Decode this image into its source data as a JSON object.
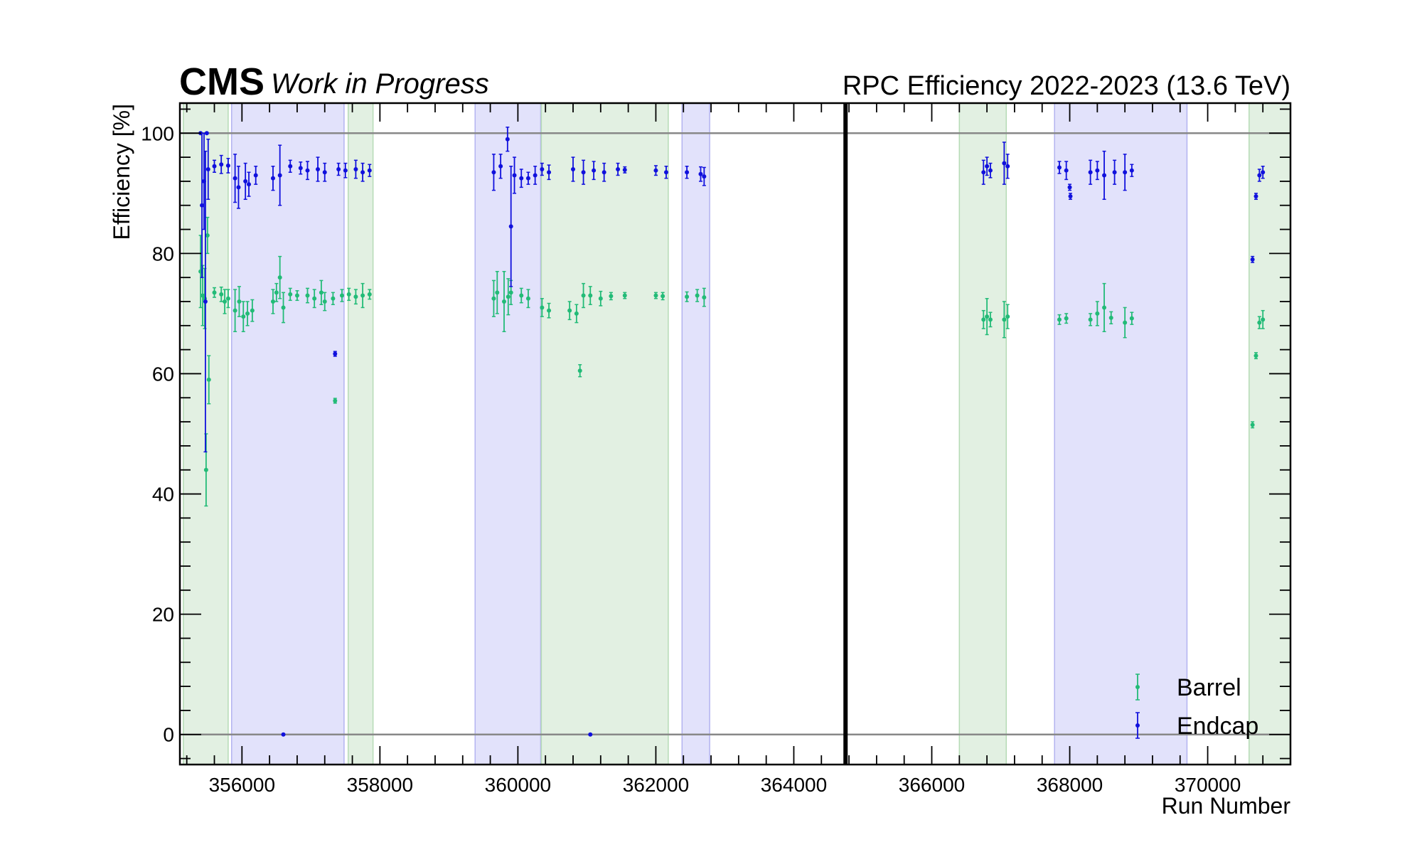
{
  "header": {
    "experiment": "CMS",
    "status": "Work in Progress",
    "title": "RPC Efficiency 2022-2023 (13.6 TeV)"
  },
  "chart_data": {
    "type": "scatter",
    "xlabel": "Run Number",
    "ylabel": "Efficiency [%]",
    "xlim": [
      355100,
      371200
    ],
    "ylim": [
      -5,
      105
    ],
    "x_ticks": [
      356000,
      358000,
      360000,
      362000,
      364000,
      366000,
      368000,
      370000
    ],
    "y_ticks": [
      0,
      20,
      40,
      60,
      80,
      100
    ],
    "reference_lines_y": [
      0,
      100
    ],
    "separator_x": 364750,
    "legend_position": "bottom-right",
    "colors": {
      "barrel": "#22bb77",
      "endcap": "#1010dd",
      "green_band": "#cfe6cf",
      "blue_band": "#cfcff8"
    },
    "bands": [
      {
        "x0": 355150,
        "x1": 355800,
        "color": "green"
      },
      {
        "x0": 355850,
        "x1": 357480,
        "color": "blue"
      },
      {
        "x0": 357540,
        "x1": 357900,
        "color": "green"
      },
      {
        "x0": 359380,
        "x1": 360330,
        "color": "blue"
      },
      {
        "x0": 360340,
        "x1": 362180,
        "color": "green"
      },
      {
        "x0": 362380,
        "x1": 362780,
        "color": "blue"
      },
      {
        "x0": 366400,
        "x1": 367080,
        "color": "green"
      },
      {
        "x0": 367780,
        "x1": 369700,
        "color": "blue"
      },
      {
        "x0": 370600,
        "x1": 371200,
        "color": "green"
      }
    ],
    "series": [
      {
        "name": "Barrel",
        "color": "#22bb77",
        "points": [
          [
            355400,
            77.0,
            6.0
          ],
          [
            355430,
            73.0,
            5.0
          ],
          [
            355460,
            72.5,
            5.0
          ],
          [
            355480,
            44.0,
            6.0
          ],
          [
            355500,
            83.0,
            3.0
          ],
          [
            355520,
            59.0,
            4.0
          ],
          [
            355600,
            73.5,
            0.8
          ],
          [
            355700,
            73.2,
            1.2
          ],
          [
            355750,
            72.0,
            2.0
          ],
          [
            355800,
            72.5,
            1.5
          ],
          [
            355900,
            70.5,
            3.5
          ],
          [
            355960,
            72.0,
            2.5
          ],
          [
            356020,
            69.5,
            2.5
          ],
          [
            356080,
            70.0,
            2.0
          ],
          [
            356150,
            70.5,
            1.8
          ],
          [
            356450,
            72.0,
            2.0
          ],
          [
            356500,
            73.5,
            1.5
          ],
          [
            356550,
            76.0,
            3.5
          ],
          [
            356600,
            71.0,
            2.5
          ],
          [
            356700,
            73.2,
            1.0
          ],
          [
            356800,
            73.0,
            0.8
          ],
          [
            356950,
            73.0,
            1.2
          ],
          [
            357050,
            72.5,
            1.5
          ],
          [
            357150,
            73.5,
            2.0
          ],
          [
            357200,
            72.0,
            1.5
          ],
          [
            357320,
            72.5,
            1.0
          ],
          [
            357350,
            55.5,
            0.4
          ],
          [
            357450,
            73.0,
            1.0
          ],
          [
            357550,
            73.2,
            1.0
          ],
          [
            357650,
            72.8,
            1.2
          ],
          [
            357750,
            73.0,
            2.0
          ],
          [
            357850,
            73.2,
            0.8
          ],
          [
            359650,
            72.5,
            3.0
          ],
          [
            359700,
            73.5,
            3.5
          ],
          [
            359800,
            72.0,
            5.0
          ],
          [
            359860,
            72.8,
            3.0
          ],
          [
            359900,
            73.5,
            2.0
          ],
          [
            360050,
            73.0,
            1.2
          ],
          [
            360150,
            72.5,
            1.5
          ],
          [
            360350,
            71.0,
            1.5
          ],
          [
            360450,
            70.5,
            1.2
          ],
          [
            360750,
            70.5,
            1.5
          ],
          [
            360850,
            70.0,
            1.5
          ],
          [
            360900,
            60.5,
            1.0
          ],
          [
            360950,
            73.0,
            2.0
          ],
          [
            361050,
            73.0,
            1.5
          ],
          [
            361200,
            72.5,
            1.2
          ],
          [
            361350,
            72.9,
            0.6
          ],
          [
            361550,
            73.0,
            0.5
          ],
          [
            362000,
            73.0,
            0.5
          ],
          [
            362100,
            72.9,
            0.6
          ],
          [
            362450,
            72.8,
            0.8
          ],
          [
            362600,
            73.0,
            1.0
          ],
          [
            362700,
            72.7,
            1.5
          ],
          [
            366750,
            69.0,
            1.5
          ],
          [
            366800,
            69.5,
            3.0
          ],
          [
            366850,
            69.0,
            1.2
          ],
          [
            367050,
            69.0,
            3.0
          ],
          [
            367100,
            69.5,
            2.0
          ],
          [
            367850,
            69.0,
            0.8
          ],
          [
            367950,
            69.2,
            0.8
          ],
          [
            368300,
            69.0,
            1.0
          ],
          [
            368400,
            70.0,
            2.0
          ],
          [
            368500,
            71.0,
            4.0
          ],
          [
            368600,
            69.3,
            1.0
          ],
          [
            368800,
            68.5,
            2.5
          ],
          [
            368900,
            69.2,
            1.0
          ],
          [
            370650,
            51.5,
            0.5
          ],
          [
            370700,
            63.0,
            0.5
          ],
          [
            370750,
            68.5,
            1.0
          ],
          [
            370800,
            69.0,
            1.5
          ]
        ]
      },
      {
        "name": "Endcap",
        "color": "#1010dd",
        "points": [
          [
            355400,
            100.0,
            0.0
          ],
          [
            355420,
            88.0,
            12.0
          ],
          [
            355450,
            92.0,
            8.0
          ],
          [
            355470,
            72.0,
            25.0
          ],
          [
            355490,
            100.0,
            0.0
          ],
          [
            355510,
            94.0,
            5.0
          ],
          [
            355600,
            94.5,
            1.0
          ],
          [
            355700,
            94.8,
            1.5
          ],
          [
            355800,
            94.6,
            1.2
          ],
          [
            355900,
            92.5,
            4.0
          ],
          [
            355950,
            91.0,
            3.5
          ],
          [
            356050,
            92.0,
            3.0
          ],
          [
            356100,
            91.5,
            2.0
          ],
          [
            356200,
            93.0,
            1.5
          ],
          [
            356450,
            92.5,
            2.0
          ],
          [
            356550,
            93.0,
            5.0
          ],
          [
            356600,
            0.0,
            0.0
          ],
          [
            356700,
            94.5,
            1.0
          ],
          [
            356850,
            94.2,
            1.0
          ],
          [
            356950,
            93.8,
            1.5
          ],
          [
            357100,
            94.0,
            2.0
          ],
          [
            357200,
            93.5,
            1.5
          ],
          [
            357350,
            63.3,
            0.4
          ],
          [
            357400,
            94.0,
            1.0
          ],
          [
            357500,
            93.8,
            1.2
          ],
          [
            357650,
            94.0,
            1.5
          ],
          [
            357750,
            93.5,
            1.5
          ],
          [
            357850,
            93.8,
            1.0
          ],
          [
            359650,
            93.5,
            3.0
          ],
          [
            359750,
            94.5,
            2.0
          ],
          [
            359850,
            99.0,
            2.0
          ],
          [
            359900,
            84.5,
            10.0
          ],
          [
            359950,
            93.0,
            3.0
          ],
          [
            360050,
            92.5,
            1.5
          ],
          [
            360150,
            92.5,
            1.0
          ],
          [
            360250,
            93.0,
            1.5
          ],
          [
            360350,
            94.0,
            1.0
          ],
          [
            360450,
            93.5,
            1.2
          ],
          [
            360800,
            94.0,
            2.0
          ],
          [
            360950,
            93.5,
            2.0
          ],
          [
            361050,
            0.0,
            0.0
          ],
          [
            361100,
            93.8,
            1.5
          ],
          [
            361250,
            93.5,
            1.5
          ],
          [
            361450,
            94.0,
            1.0
          ],
          [
            361550,
            93.9,
            0.5
          ],
          [
            362000,
            93.8,
            0.8
          ],
          [
            362150,
            93.5,
            1.0
          ],
          [
            362450,
            93.5,
            1.0
          ],
          [
            362650,
            93.2,
            1.2
          ],
          [
            362700,
            92.8,
            1.5
          ],
          [
            366750,
            93.5,
            2.0
          ],
          [
            366800,
            94.5,
            1.5
          ],
          [
            366850,
            93.8,
            1.2
          ],
          [
            367050,
            95.0,
            3.5
          ],
          [
            367100,
            94.5,
            2.0
          ],
          [
            367850,
            94.3,
            1.0
          ],
          [
            367950,
            93.8,
            1.5
          ],
          [
            368000,
            91.0,
            0.5
          ],
          [
            368010,
            89.5,
            0.5
          ],
          [
            368300,
            93.5,
            2.0
          ],
          [
            368400,
            93.8,
            1.5
          ],
          [
            368500,
            93.0,
            4.0
          ],
          [
            368650,
            93.5,
            2.0
          ],
          [
            368800,
            93.5,
            3.0
          ],
          [
            368900,
            93.8,
            1.0
          ],
          [
            370650,
            79.0,
            0.5
          ],
          [
            370700,
            89.5,
            0.5
          ],
          [
            370750,
            93.0,
            1.0
          ],
          [
            370800,
            93.5,
            1.0
          ]
        ]
      }
    ]
  }
}
